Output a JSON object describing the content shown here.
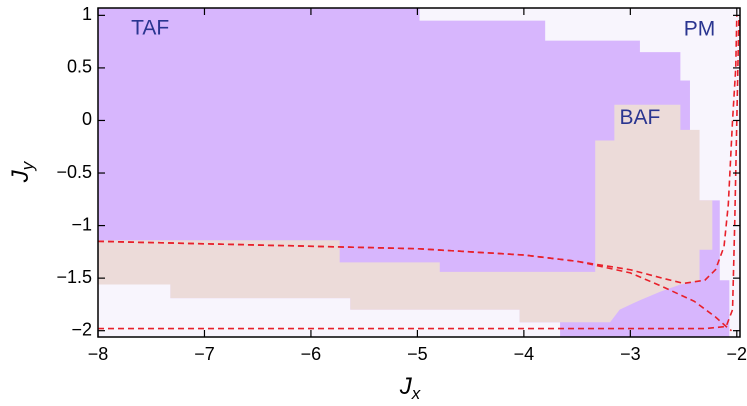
{
  "chart_data": {
    "type": "phase",
    "xlabel": [
      "J",
      "x"
    ],
    "ylabel": [
      "J",
      "y"
    ],
    "xlim": [
      -8,
      -1.97
    ],
    "ylim": [
      -2.06,
      1.07
    ],
    "xticks": [
      {
        "value": -8,
        "label": "−8"
      },
      {
        "value": -7,
        "label": "−7"
      },
      {
        "value": -6,
        "label": "−6"
      },
      {
        "value": -5,
        "label": "−5"
      },
      {
        "value": -4,
        "label": "−4"
      },
      {
        "value": -3,
        "label": "−3"
      },
      {
        "value": -2,
        "label": "−2"
      }
    ],
    "yticks": [
      1,
      0.5,
      0,
      {
        "value": -0.5,
        "label": "−0.5"
      },
      {
        "value": -1,
        "label": "−1"
      },
      {
        "value": -1.5,
        "label": "−1.5"
      },
      {
        "value": -2,
        "label": "−2"
      }
    ],
    "background": "#f8f5fd",
    "regions": [
      {
        "color": "#d7b6fd",
        "x": [
          -8,
          -4.98,
          -4.98,
          -3.8,
          -3.8,
          -2.91,
          -2.91,
          -2.53,
          -2.53,
          -2.44,
          -2.44,
          -2.16,
          -2.16,
          -2.07,
          -2.07,
          -3.66,
          -3.66,
          -4.04,
          -4.04,
          -5.63,
          -5.63,
          -7.32,
          -7.32,
          -8
        ],
        "y": [
          1.07,
          1.07,
          0.95,
          0.95,
          0.76,
          0.76,
          0.65,
          0.65,
          0.38,
          0.38,
          -0.76,
          -0.76,
          -1.52,
          -1.52,
          -2.06,
          -2.06,
          -1.92,
          -1.92,
          -1.8,
          -1.8,
          -1.69,
          -1.69,
          -1.56,
          -1.56
        ]
      },
      {
        "color": "#ecdbd9",
        "x": [
          -8,
          -5.73,
          -5.73,
          -4.79,
          -4.79,
          -3.33,
          -3.33,
          -3.15,
          -3.15,
          -2.53,
          -2.53,
          -2.35,
          -2.35,
          -2.23,
          -2.23,
          -2.35,
          -2.35,
          -2.53,
          -2.72,
          -2.91,
          -3.1,
          -3.19,
          -4.04,
          -4.04,
          -5.63,
          -5.63,
          -7.32,
          -7.32,
          -8
        ],
        "y": [
          -1.14,
          -1.14,
          -1.35,
          -1.35,
          -1.44,
          -1.44,
          -0.19,
          -0.19,
          0.15,
          0.15,
          -0.09,
          -0.09,
          -0.76,
          -0.76,
          -1.23,
          -1.23,
          -1.52,
          -1.56,
          -1.63,
          -1.71,
          -1.8,
          -1.92,
          -1.92,
          -1.8,
          -1.8,
          -1.69,
          -1.69,
          -1.56,
          -1.56
        ]
      }
    ],
    "series": [
      {
        "color": "#e8202a",
        "x": [
          -8,
          -5,
          -4,
          -3.5,
          -3,
          -2.7,
          -2.5,
          -2.3,
          -2.2,
          -2.12,
          -2.08,
          -2.04,
          -2.01,
          -2.0
        ],
        "y": [
          -1.15,
          -1.22,
          -1.28,
          -1.34,
          -1.42,
          -1.5,
          -1.55,
          -1.52,
          -1.42,
          -1.2,
          -0.8,
          0,
          0.5,
          1.0
        ]
      },
      {
        "color": "#e8202a",
        "x": [
          -8,
          -5,
          -4,
          -3.5,
          -3,
          -2.7,
          -2.4,
          -2.2,
          -2.1,
          -2.05
        ],
        "y": [
          -1.15,
          -1.22,
          -1.28,
          -1.34,
          -1.45,
          -1.58,
          -1.72,
          -1.87,
          -1.96,
          -2.0
        ]
      },
      {
        "color": "#e8202a",
        "x": [
          -8,
          -3,
          -2.3,
          -2.1,
          -2.04,
          -2.02,
          -2.0,
          -1.98
        ],
        "y": [
          -1.98,
          -1.98,
          -1.98,
          -1.96,
          -1.8,
          -1.0,
          0,
          1.0
        ]
      }
    ],
    "annotations": [
      {
        "text": "TAF",
        "x": -7.51,
        "y": 0.87
      },
      {
        "text": "BAF",
        "x": -2.91,
        "y": 0.02
      },
      {
        "text": "PM",
        "x": -2.35,
        "y": 0.86
      }
    ]
  }
}
